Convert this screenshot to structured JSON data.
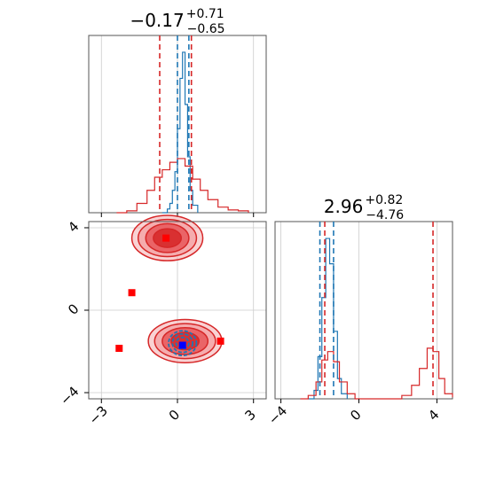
{
  "colors": {
    "red": "#d62728",
    "blue": "#1f77b4",
    "red_fill_light": "#f4a6a7",
    "red_fill_mid": "#e8575a",
    "red_fill_dark": "#d62728",
    "grid": "#cccccc",
    "marker_red": "#ff0000",
    "marker_blue": "#0000ff"
  },
  "chart_data": [
    {
      "type": "line",
      "panel": "top-left marginal (parameter 1)",
      "title": {
        "median": "−0.17",
        "plus": "+0.71",
        "minus": "−0.65"
      },
      "xlim": [
        -3.5,
        3.5
      ],
      "x_grid": [
        -3,
        0,
        3
      ],
      "show_tick_labels": false,
      "series": [
        {
          "color": "blue",
          "style": "step",
          "x": [
            -0.6,
            -0.4,
            -0.3,
            -0.2,
            -0.1,
            0.0,
            0.1,
            0.2,
            0.3,
            0.4,
            0.5,
            0.6,
            0.8
          ],
          "y": [
            0.0,
            0.02,
            0.05,
            0.12,
            0.22,
            0.45,
            0.72,
            0.86,
            0.58,
            0.3,
            0.12,
            0.04,
            0.0
          ]
        },
        {
          "color": "red",
          "style": "step",
          "x": [
            -2.4,
            -2.0,
            -1.6,
            -1.2,
            -0.9,
            -0.6,
            -0.3,
            0.0,
            0.3,
            0.6,
            0.9,
            1.2,
            1.6,
            2.0,
            2.4,
            2.8
          ],
          "y": [
            0.0,
            0.01,
            0.05,
            0.12,
            0.19,
            0.23,
            0.27,
            0.29,
            0.25,
            0.18,
            0.12,
            0.07,
            0.03,
            0.015,
            0.01,
            0.0
          ]
        }
      ],
      "vlines": [
        {
          "x": -0.7,
          "color": "red"
        },
        {
          "x": 0.0,
          "color": "blue"
        },
        {
          "x": 0.45,
          "color": "blue"
        },
        {
          "x": 0.55,
          "color": "red"
        }
      ]
    },
    {
      "type": "scatter",
      "panel": "bottom-left 2D contour",
      "xlim": [
        -3.5,
        3.5
      ],
      "ylim": [
        -4.3,
        4.3
      ],
      "x_ticks": [
        "−3",
        "0",
        "3"
      ],
      "x_tick_values": [
        -3,
        0,
        3
      ],
      "y_ticks": [
        "−4",
        "0",
        "4"
      ],
      "y_tick_values": [
        -4,
        0,
        4
      ],
      "contours": [
        {
          "color": "red",
          "cx": -0.4,
          "cy": 3.5,
          "rx": [
            1.4,
            1.15,
            0.85,
            0.55
          ],
          "ry": [
            1.1,
            0.9,
            0.7,
            0.45
          ]
        },
        {
          "color": "red",
          "cx": 0.3,
          "cy": -1.5,
          "rx": [
            1.45,
            1.2,
            0.9,
            0.55
          ],
          "ry": [
            1.05,
            0.85,
            0.65,
            0.42
          ]
        },
        {
          "color": "blue",
          "cx": 0.2,
          "cy": -1.6,
          "rx": [
            0.55,
            0.4,
            0.25
          ],
          "ry": [
            0.6,
            0.45,
            0.28
          ]
        }
      ],
      "points": [
        {
          "x": -0.45,
          "y": 3.5,
          "color": "marker_red"
        },
        {
          "x": -1.8,
          "y": 0.85,
          "color": "marker_red"
        },
        {
          "x": -2.3,
          "y": -1.85,
          "color": "marker_red"
        },
        {
          "x": 1.7,
          "y": -1.5,
          "color": "marker_red"
        },
        {
          "x": 0.2,
          "y": -1.7,
          "color": "marker_blue"
        }
      ]
    },
    {
      "type": "line",
      "panel": "bottom-right marginal (parameter 2)",
      "title": {
        "median": "2.96",
        "plus": "+0.82",
        "minus": "−4.76"
      },
      "xlim": [
        -4.3,
        4.8
      ],
      "x_ticks": [
        "−4",
        "0",
        "4"
      ],
      "x_tick_values": [
        -4,
        0,
        4
      ],
      "series": [
        {
          "color": "blue",
          "style": "step",
          "x": [
            -2.6,
            -2.3,
            -2.1,
            -1.9,
            -1.7,
            -1.5,
            -1.3,
            -1.1,
            -0.9,
            -0.6
          ],
          "y": [
            0.0,
            0.05,
            0.25,
            0.6,
            0.95,
            0.8,
            0.4,
            0.12,
            0.03,
            0.0
          ]
        },
        {
          "color": "red",
          "style": "step",
          "x": [
            -3.0,
            -2.6,
            -2.2,
            -1.9,
            -1.6,
            -1.3,
            -1.0,
            -0.6,
            -0.2,
            0.6,
            1.5,
            2.2,
            2.7,
            3.1,
            3.5,
            3.8,
            4.1,
            4.4,
            4.8
          ],
          "y": [
            0.0,
            0.02,
            0.1,
            0.23,
            0.28,
            0.22,
            0.1,
            0.03,
            0.0,
            0.0,
            0.0,
            0.02,
            0.08,
            0.18,
            0.3,
            0.28,
            0.12,
            0.03,
            0.01
          ]
        }
      ],
      "vlines": [
        {
          "x": -2.0,
          "color": "blue"
        },
        {
          "x": -1.75,
          "color": "red"
        },
        {
          "x": -1.3,
          "color": "blue"
        },
        {
          "x": 3.8,
          "color": "red"
        }
      ]
    }
  ]
}
